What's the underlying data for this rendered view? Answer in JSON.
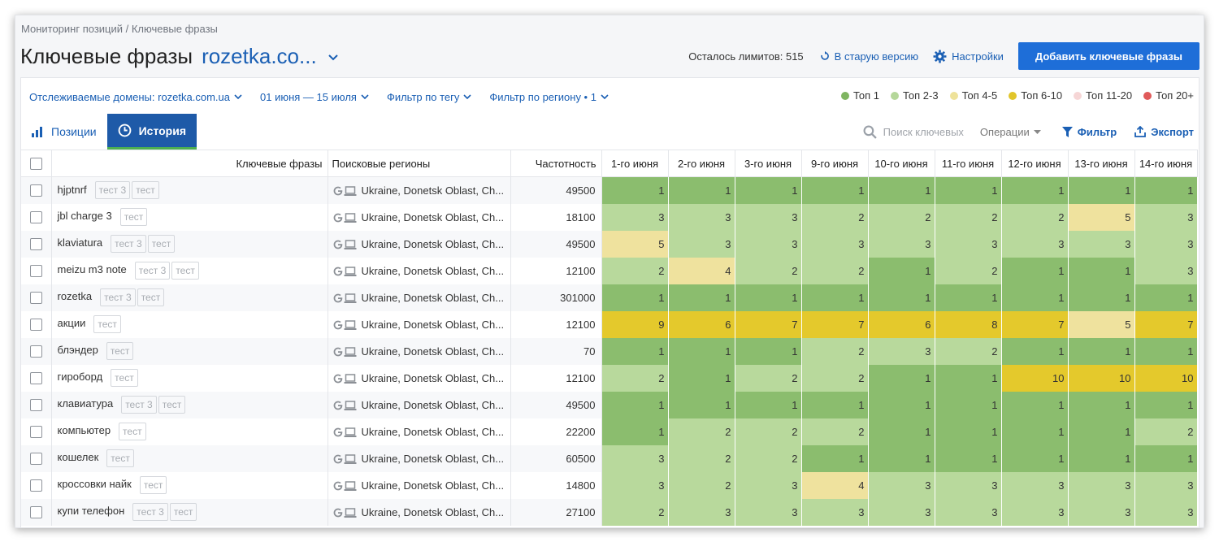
{
  "breadcrumb": "Мониторинг позиций / Ключевые фразы",
  "title": "Ключевые фразы",
  "domain": "rozetka.co...",
  "limits": "Осталось лимитов: 515",
  "old_version": "В старую версию",
  "settings": "Настройки",
  "add_button": "Добавить ключевые фразы",
  "filters": {
    "domains": "Отслеживаемые домены: rozetka.com.ua",
    "dates": "01 июня — 15 июля",
    "tag": "Фильтр по тегу",
    "region": "Фильтр по региону • 1"
  },
  "legend": [
    {
      "label": "Топ 1",
      "color": "#7fb561"
    },
    {
      "label": "Топ 2-3",
      "color": "#b5d79a"
    },
    {
      "label": "Топ 4-5",
      "color": "#eee29a"
    },
    {
      "label": "Топ 6-10",
      "color": "#e1c52a"
    },
    {
      "label": "Топ 11-20",
      "color": "#f6d6d6"
    },
    {
      "label": "Топ 20+",
      "color": "#e05a5a"
    }
  ],
  "tabs": {
    "positions": "Позиции",
    "history": "История"
  },
  "toolbar": {
    "search_placeholder": "Поиск ключевых",
    "operations": "Операции",
    "filter": "Фильтр",
    "export": "Экспорт"
  },
  "columns": {
    "keywords": "Ключевые фразы",
    "regions": "Поисковые регионы",
    "frequency": "Частотность",
    "days": [
      "1-го июня",
      "2-го июня",
      "3-го июня",
      "9-го июня",
      "10-го июня",
      "11-го июня",
      "12-го июня",
      "13-го июня",
      "14-го июня"
    ]
  },
  "region_text": "Ukraine, Donetsk Oblast, Ch...",
  "rows": [
    {
      "keyword": "hjptnrf",
      "tags": [
        "тест 3",
        "тест"
      ],
      "freq": "49500",
      "pos": [
        1,
        1,
        1,
        1,
        1,
        1,
        1,
        1,
        1
      ]
    },
    {
      "keyword": "jbl charge 3",
      "tags": [
        "тест"
      ],
      "freq": "18100",
      "pos": [
        3,
        3,
        3,
        2,
        2,
        2,
        2,
        5,
        3
      ]
    },
    {
      "keyword": "klaviatura",
      "tags": [
        "тест 3",
        "тест"
      ],
      "freq": "49500",
      "pos": [
        5,
        3,
        3,
        3,
        3,
        3,
        3,
        3,
        3
      ]
    },
    {
      "keyword": "meizu m3 note",
      "tags": [
        "тест 3",
        "тест"
      ],
      "freq": "12100",
      "pos": [
        2,
        4,
        2,
        2,
        1,
        2,
        1,
        1,
        3
      ]
    },
    {
      "keyword": "rozetka",
      "tags": [
        "тест 3",
        "тест"
      ],
      "freq": "301000",
      "pos": [
        1,
        1,
        1,
        1,
        1,
        1,
        1,
        1,
        1
      ]
    },
    {
      "keyword": "акции",
      "tags": [
        "тест"
      ],
      "freq": "12100",
      "pos": [
        9,
        6,
        7,
        7,
        6,
        8,
        7,
        5,
        7
      ]
    },
    {
      "keyword": "блэндер",
      "tags": [
        "тест"
      ],
      "freq": "70",
      "pos": [
        1,
        1,
        1,
        2,
        3,
        2,
        1,
        1,
        1
      ]
    },
    {
      "keyword": "гироборд",
      "tags": [
        "тест"
      ],
      "freq": "12100",
      "pos": [
        2,
        1,
        2,
        2,
        1,
        1,
        10,
        10,
        10
      ]
    },
    {
      "keyword": "клавиатура",
      "tags": [
        "тест 3",
        "тест"
      ],
      "freq": "49500",
      "pos": [
        1,
        1,
        1,
        1,
        1,
        1,
        1,
        1,
        1
      ]
    },
    {
      "keyword": "компьютер",
      "tags": [
        "тест"
      ],
      "freq": "22200",
      "pos": [
        1,
        2,
        2,
        2,
        1,
        1,
        1,
        1,
        2
      ]
    },
    {
      "keyword": "кошелек",
      "tags": [
        "тест"
      ],
      "freq": "60500",
      "pos": [
        3,
        2,
        2,
        1,
        1,
        1,
        1,
        1,
        1
      ]
    },
    {
      "keyword": "кроссовки найк",
      "tags": [
        "тест"
      ],
      "freq": "14800",
      "pos": [
        3,
        2,
        3,
        4,
        3,
        3,
        3,
        3,
        3
      ]
    },
    {
      "keyword": "купи телефон",
      "tags": [
        "тест 3",
        "тест"
      ],
      "freq": "27100",
      "pos": [
        2,
        3,
        3,
        3,
        3,
        3,
        3,
        3,
        3
      ]
    }
  ]
}
